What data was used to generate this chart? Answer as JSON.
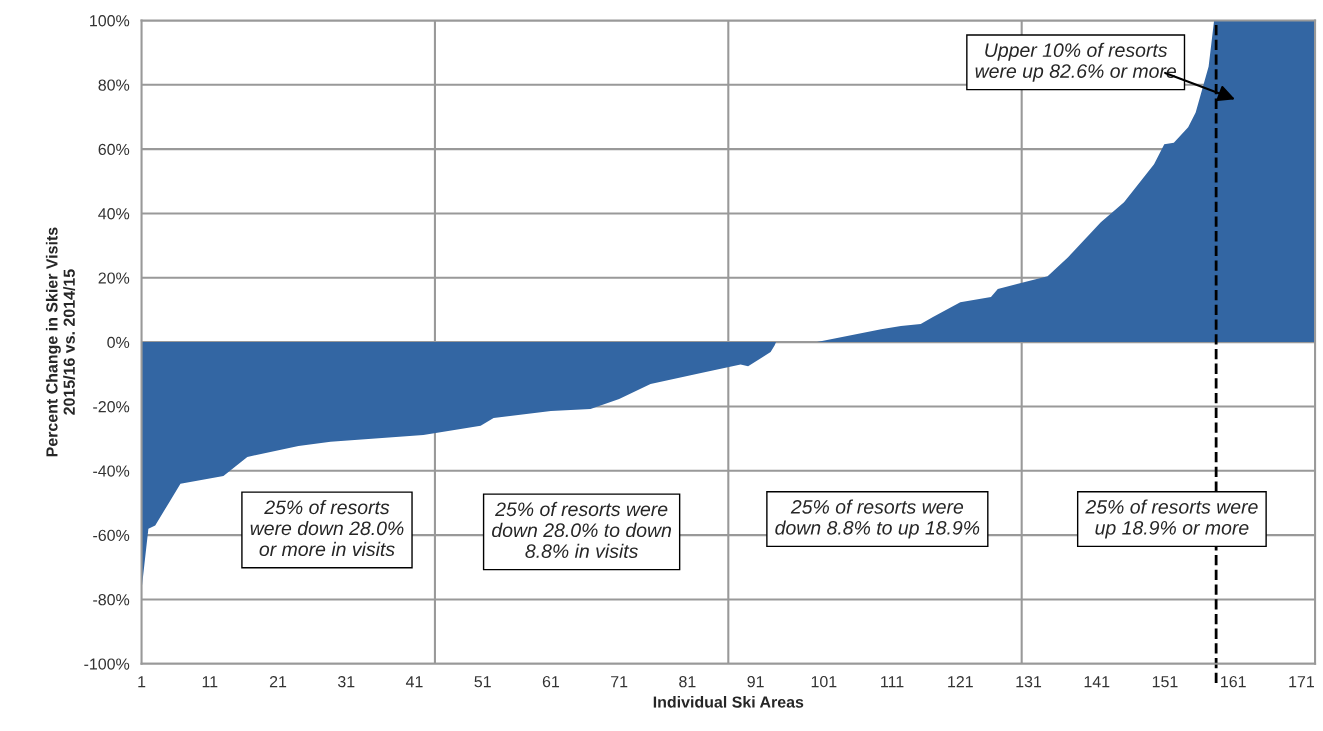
{
  "chart_data": {
    "type": "area",
    "xlabel": "Individual Ski Areas",
    "ylabel": "Percent Change in Skier Visits\n2015/16 vs. 2014/15",
    "series": [
      {
        "color": "#3366a3",
        "x": [
          1,
          2,
          3,
          5,
          6.7,
          13,
          16.5,
          24,
          28.7,
          42.3,
          50.7,
          52.6,
          61,
          66.8,
          71,
          75.6,
          83,
          88.8,
          89.9,
          93.2,
          93.8,
          94,
          100,
          109.4,
          112.3,
          115.2,
          117,
          121,
          125.5,
          126.5,
          133.8,
          136.8,
          141.6,
          145,
          149.4,
          150.9,
          152.3,
          154.4,
          155.5,
          157.4,
          158.2,
          173
        ],
        "values": [
          -77,
          -58,
          -57,
          -50,
          -44,
          -41.6,
          -35.7,
          -32.3,
          -31,
          -28.9,
          -26,
          -23.6,
          -21.4,
          -20.8,
          -17.7,
          -13,
          -9.6,
          -7,
          -7.5,
          -3.1,
          -1,
          0,
          0,
          4,
          5,
          5.6,
          7.8,
          12.4,
          14,
          16.5,
          20.5,
          26.4,
          37.3,
          43.5,
          55.3,
          61.5,
          62,
          66.8,
          71.4,
          85.7,
          100,
          100
        ]
      }
    ],
    "xlim": [
      1,
      173
    ],
    "xticks": [
      1,
      11,
      21,
      31,
      41,
      51,
      61,
      71,
      81,
      91,
      101,
      111,
      121,
      131,
      141,
      151,
      161,
      171,
      {
        "value": 44,
        "label": null
      },
      {
        "value": 87,
        "label": null
      },
      {
        "value": 130,
        "label": null
      }
    ],
    "ylim": [
      -100,
      100
    ],
    "yticks": [
      {
        "value": -100,
        "label": "-100%"
      },
      {
        "value": -80,
        "label": "-80%"
      },
      {
        "value": -60,
        "label": "-60%"
      },
      {
        "value": -40,
        "label": "-40%"
      },
      {
        "value": -20,
        "label": "-20%"
      },
      {
        "value": 0,
        "label": "0%"
      },
      {
        "value": 20,
        "label": "20%"
      },
      {
        "value": 40,
        "label": "40%"
      },
      {
        "value": 60,
        "label": "60%"
      },
      {
        "value": 80,
        "label": "80%"
      },
      {
        "value": 100,
        "label": "100%"
      }
    ],
    "grid": true,
    "ref_lines": [
      {
        "axis": "x",
        "value": 158.5,
        "color": "#000000",
        "line_style": "dashed"
      }
    ],
    "annotations": [
      "25% of resorts\nwere down 28.0%\nor more in visits",
      "25% of resorts were\ndown 28.0% to down\n8.8% in visits",
      "25% of resorts were\ndown 8.8% to up 18.9%",
      "25% of resorts were\nup 18.9% or more",
      "Upper 10% of resorts\nwere up 82.6% or more"
    ]
  }
}
